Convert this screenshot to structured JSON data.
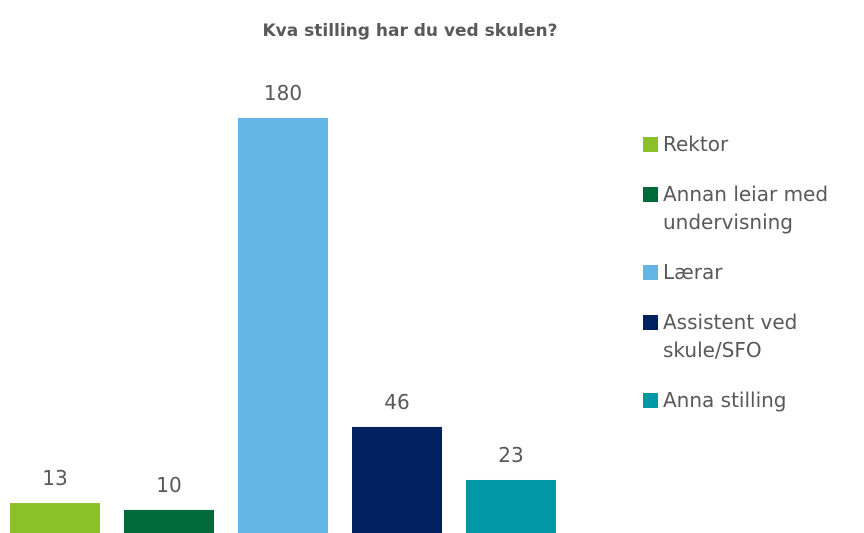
{
  "chart_data": {
    "type": "bar",
    "title": "Kva stilling har du ved skulen?",
    "series": [
      {
        "name": "Rektor",
        "color": "#8cc02b",
        "values": [
          13
        ]
      },
      {
        "name": "Annan leiar med undervisning",
        "color": "#006a38",
        "values": [
          10
        ]
      },
      {
        "name": "Lærar",
        "color": "#62b5e5",
        "values": [
          180
        ]
      },
      {
        "name": "Assistent ved skule/SFO",
        "color": "#002060",
        "values": [
          46
        ]
      },
      {
        "name": "Anna stilling",
        "color": "#0097a7",
        "values": [
          23
        ]
      }
    ],
    "ylim": [
      0,
      180
    ],
    "legend": "right"
  }
}
